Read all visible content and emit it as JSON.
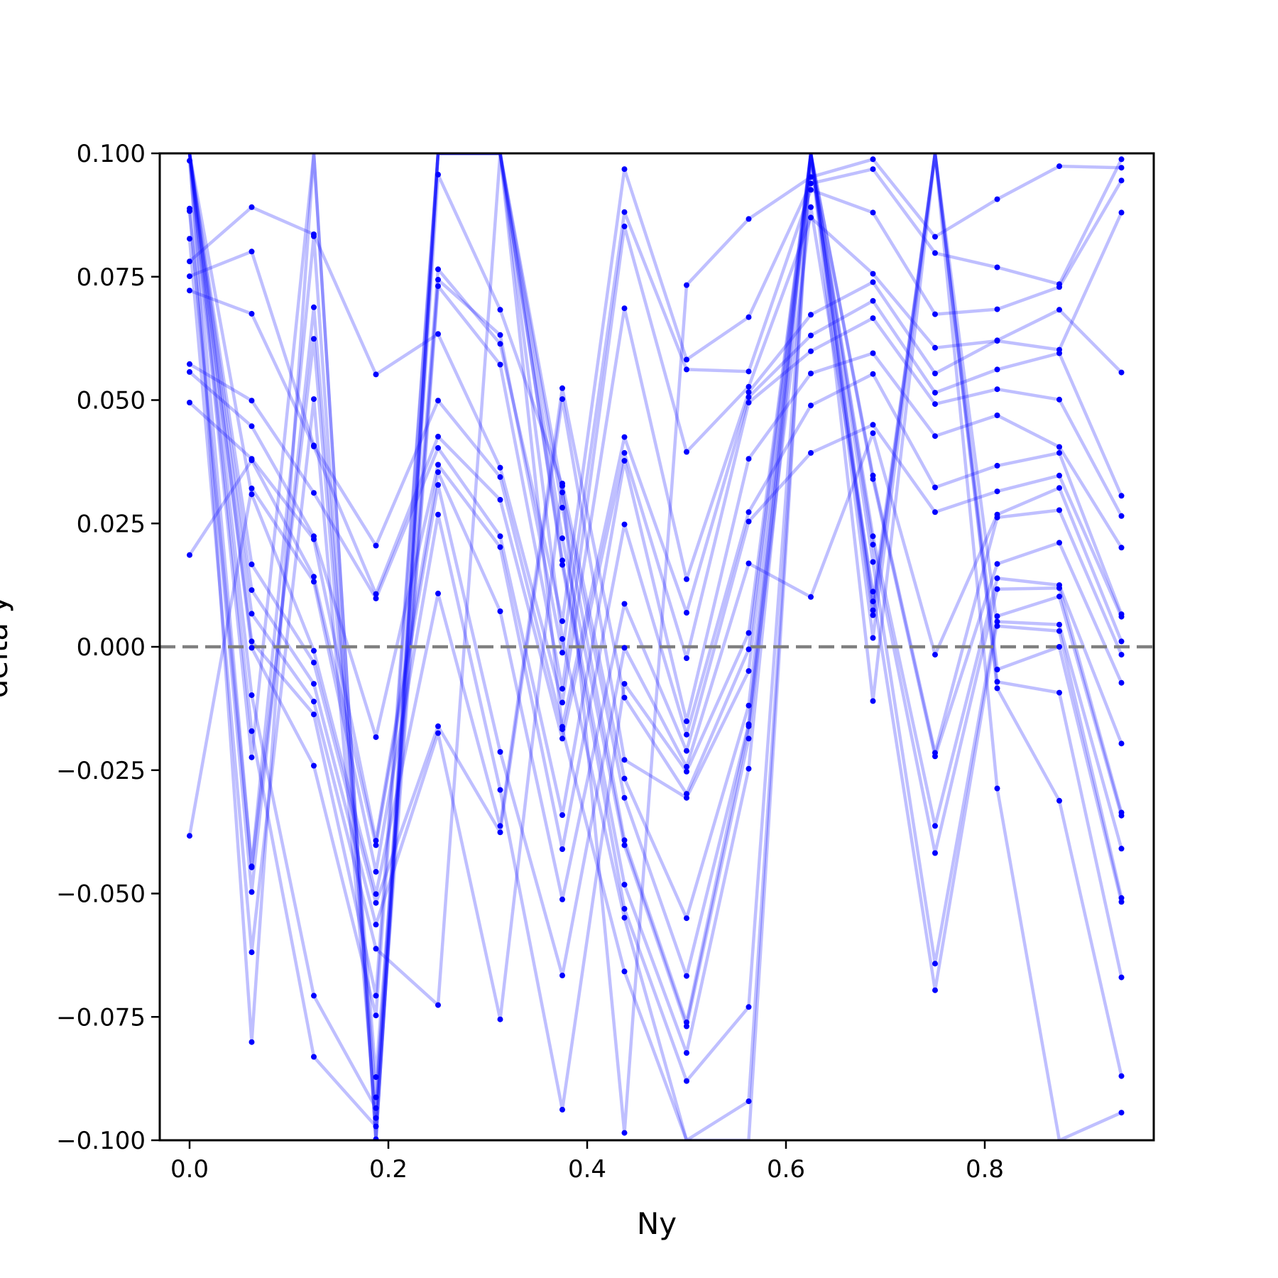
{
  "chart_data": {
    "type": "line",
    "title": "",
    "xlabel": "Ny",
    "ylabel": "delta y",
    "xlim": [
      -0.03,
      0.97
    ],
    "ylim": [
      -0.1,
      0.1
    ],
    "x_ticks": [
      0.0,
      0.2,
      0.4,
      0.6,
      0.8
    ],
    "x_tick_labels": [
      "0.0",
      "0.2",
      "0.4",
      "0.6",
      "0.8"
    ],
    "y_ticks": [
      0.1,
      0.075,
      0.05,
      0.025,
      0.0,
      -0.025,
      -0.05,
      -0.075,
      -0.1
    ],
    "y_tick_labels": [
      "0.100",
      "0.075",
      "0.050",
      "0.025",
      "0.000",
      "−0.025",
      "−0.050",
      "−0.075",
      "−0.100"
    ],
    "grid": false,
    "legend": "none",
    "reference_line": {
      "y": 0.0,
      "style": "dashed",
      "color": "#808080"
    },
    "line_color": "#0000ff",
    "line_alpha": 0.25,
    "marker_color": "#0000ff",
    "x": [
      0.0,
      0.0625,
      0.125,
      0.1875,
      0.25,
      0.3125,
      0.375,
      0.4375,
      0.5,
      0.5625,
      0.625,
      0.6875,
      0.75,
      0.8125,
      0.875,
      0.9375
    ],
    "series": [
      {
        "values": [
          0.0985,
          -0.0445,
          0.0832,
          -0.0998,
          0.0957,
          0.0683,
          0.0326,
          -0.0985,
          0.0733,
          0.0867,
          0.0952,
          0.0988,
          0.0831,
          0.0907,
          0.0974,
          0.0971
        ]
      },
      {
        "values": [
          0.0888,
          -0.0497,
          0.0688,
          -0.0872,
          0.0765,
          0.0614,
          0.0052,
          0.0968,
          0.0582,
          0.0668,
          0.0939,
          0.0968,
          0.0798,
          0.0769,
          0.0735,
          0.0988
        ]
      },
      {
        "values": [
          0.0883,
          -0.0447,
          0.0624,
          -0.0913,
          0.0744,
          0.0632,
          -0.0012,
          0.0881,
          0.0562,
          0.0558,
          0.0926,
          0.088,
          0.0674,
          0.0684,
          0.0729,
          0.0945
        ]
      },
      {
        "values": [
          0.0827,
          -0.0619,
          0.0502,
          -0.0955,
          0.0731,
          0.0572,
          -0.0085,
          0.0852,
          0.0395,
          0.0527,
          0.087,
          0.0756,
          0.0606,
          0.062,
          0.0602,
          0.088
        ]
      },
      {
        "values": [
          0.0781,
          0.0891,
          0.0836,
          0.0552,
          0.0634,
          0.0363,
          -0.0113,
          0.0686,
          0.0137,
          0.0516,
          0.0673,
          0.0739,
          0.0554,
          0.0621,
          0.0683,
          0.0556
        ]
      },
      {
        "values": [
          0.0751,
          0.0801,
          0.0408,
          0.0205,
          0.0499,
          0.0344,
          -0.0162,
          0.0425,
          0.0069,
          0.0506,
          0.0631,
          0.0701,
          0.0515,
          0.0562,
          0.0595,
          0.0306
        ]
      },
      {
        "values": [
          0.0722,
          0.0675,
          0.0406,
          0.0107,
          0.0426,
          0.0298,
          -0.0186,
          0.0393,
          -0.0023,
          0.0495,
          0.0599,
          0.0666,
          0.0492,
          0.0522,
          0.0501,
          0.0265
        ]
      },
      {
        "values": [
          0.0573,
          0.0499,
          0.0312,
          0.0098,
          0.0403,
          0.0224,
          -0.0341,
          0.0377,
          -0.0151,
          0.0381,
          0.0554,
          0.0595,
          0.0427,
          0.0469,
          0.0405,
          0.0201
        ]
      },
      {
        "values": [
          0.0557,
          0.0447,
          0.0224,
          -0.0183,
          0.0369,
          0.0202,
          -0.041,
          0.0248,
          -0.0178,
          0.0273,
          0.0489,
          0.0553,
          0.0323,
          0.0367,
          0.0393,
          0.0066
        ]
      },
      {
        "values": [
          0.0495,
          0.0381,
          0.0218,
          -0.0393,
          0.0354,
          0.0072,
          -0.0512,
          0.0087,
          -0.0211,
          0.0254,
          0.0393,
          0.045,
          0.0273,
          0.0315,
          0.0347,
          0.0061
        ]
      },
      {
        "values": [
          0.0186,
          0.0378,
          0.0142,
          -0.0402,
          0.0328,
          -0.0213,
          -0.0666,
          -0.0002,
          -0.0243,
          0.0169,
          0.0101,
          0.0433,
          -0.0016,
          0.0268,
          0.0322,
          0.0011
        ]
      },
      {
        "values": [
          -0.0383,
          0.0321,
          0.0132,
          -0.0456,
          0.0268,
          -0.029,
          -0.0938,
          -0.0075,
          -0.0253,
          0.0028,
          0.1,
          0.0347,
          -0.0215,
          0.0262,
          0.0277,
          -0.0016
        ]
      },
      {
        "values": [
          0.1,
          0.0309,
          -0.0008,
          -0.0501,
          0.0108,
          -0.0363,
          0.0524,
          -0.0103,
          -0.0298,
          -0.0005,
          0.1,
          0.034,
          -0.0222,
          0.0168,
          0.0211,
          -0.0073
        ]
      },
      {
        "values": [
          0.1,
          0.0167,
          -0.0032,
          -0.0519,
          -0.0161,
          -0.0376,
          0.0502,
          -0.0229,
          -0.0306,
          -0.0049,
          0.1,
          0.0224,
          -0.0363,
          0.0139,
          0.0125,
          -0.0196
        ]
      },
      {
        "values": [
          0.1,
          0.0115,
          -0.0075,
          -0.0563,
          -0.0175,
          -0.0755,
          0.0331,
          -0.0267,
          -0.055,
          -0.0119,
          0.1,
          0.0207,
          -0.0418,
          0.0117,
          0.0119,
          -0.0336
        ]
      },
      {
        "values": [
          0.1,
          0.0067,
          -0.0111,
          -0.0612,
          -0.0726,
          0.1,
          0.0313,
          -0.0306,
          -0.0667,
          -0.0157,
          0.1,
          0.0172,
          -0.0642,
          0.0062,
          0.0102,
          -0.0342
        ]
      },
      {
        "values": [
          0.1,
          0.0011,
          -0.0137,
          -0.0707,
          0.1,
          0.1,
          0.0282,
          -0.0392,
          -0.0761,
          -0.0161,
          0.0891,
          0.0112,
          -0.0696,
          0.0051,
          0.0045,
          -0.0409
        ]
      },
      {
        "values": [
          0.1,
          -0.0002,
          -0.0241,
          -0.0747,
          0.1,
          0.1,
          0.022,
          -0.0402,
          -0.0769,
          -0.0186,
          0.1,
          0.0092,
          0.1,
          0.0042,
          0.0032,
          -0.0509
        ]
      },
      {
        "values": [
          0.1,
          -0.0098,
          -0.0707,
          -0.0935,
          0.1,
          0.1,
          0.0175,
          -0.0482,
          -0.0823,
          -0.0247,
          0.1,
          0.0074,
          0.1,
          -0.0046,
          0.0,
          -0.0517
        ]
      },
      {
        "values": [
          0.1,
          -0.0171,
          -0.0831,
          -0.0972,
          0.1,
          0.1,
          0.0166,
          -0.0531,
          -0.088,
          -0.073,
          0.1,
          0.0064,
          0.1,
          -0.0071,
          -0.0093,
          -0.067
        ]
      },
      {
        "values": [
          0.1,
          -0.0224,
          0.1,
          -0.1,
          0.1,
          0.1,
          0.0016,
          -0.0549,
          -0.1,
          -0.0921,
          0.1,
          0.0018,
          0.1,
          -0.0084,
          -0.0312,
          -0.087
        ]
      },
      {
        "values": [
          0.1,
          -0.0801,
          0.1,
          -0.1,
          0.1,
          0.1,
          -0.0167,
          -0.0658,
          -0.1,
          -0.1,
          0.1,
          -0.011,
          0.1,
          -0.0287,
          -0.1,
          -0.0944
        ]
      }
    ]
  }
}
